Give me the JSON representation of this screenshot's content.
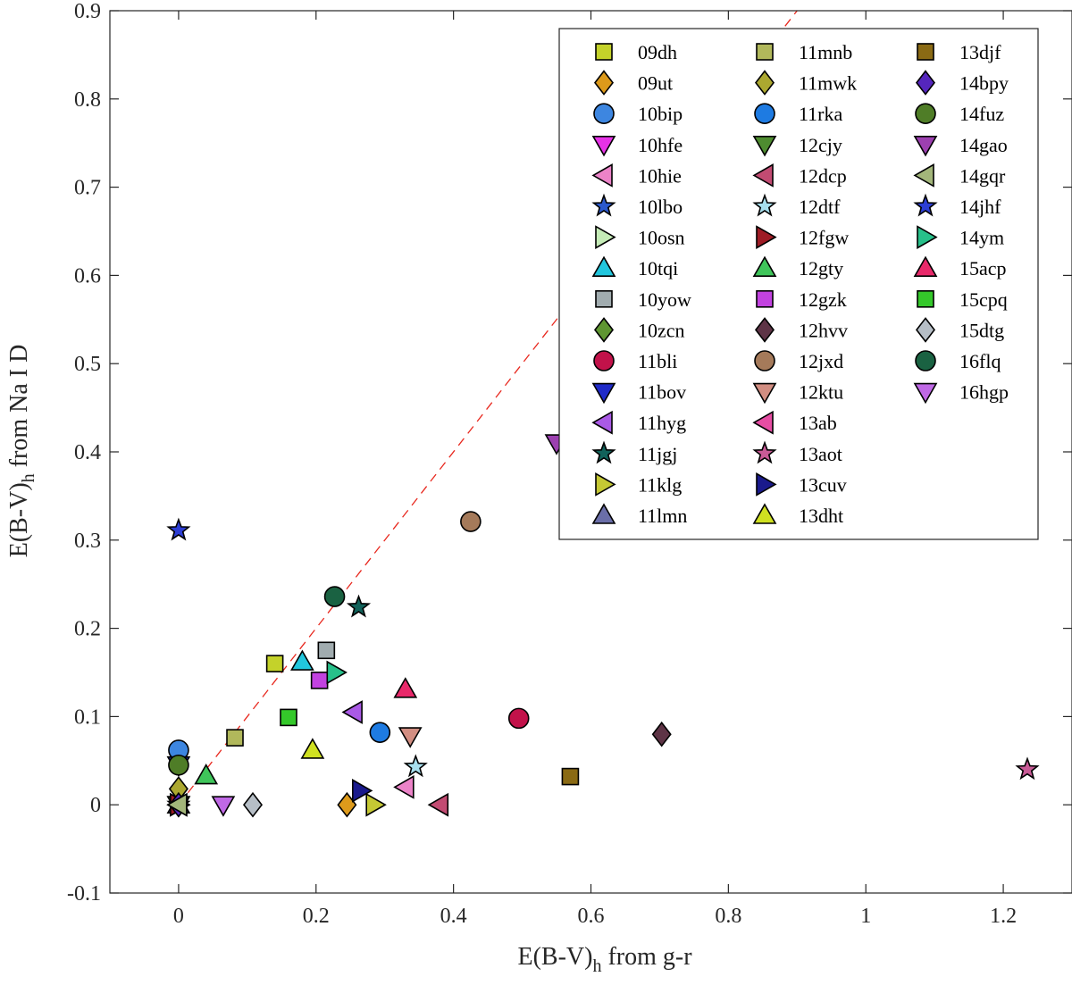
{
  "chart_data": {
    "type": "scatter",
    "title": "",
    "xlabel": "E(B-V)",
    "xlabel_sub": "h",
    "xlabel_suffix": " from g-r",
    "ylabel": "E(B-V)",
    "ylabel_sub": "h",
    "ylabel_suffix": " from Na I D",
    "xlim": [
      -0.1,
      1.3
    ],
    "ylim": [
      -0.1,
      0.9
    ],
    "xticks": [
      0,
      0.2,
      0.4,
      0.6,
      0.8,
      1,
      1.2
    ],
    "xtick_labels": [
      "0",
      "0.2",
      "0.4",
      "0.6",
      "0.8",
      "1",
      "1.2"
    ],
    "yticks": [
      -0.1,
      0,
      0.1,
      0.2,
      0.3,
      0.4,
      0.5,
      0.6,
      0.7,
      0.8,
      0.9
    ],
    "ytick_labels": [
      "-0.1",
      "0",
      "0.1",
      "0.2",
      "0.3",
      "0.4",
      "0.5",
      "0.6",
      "0.7",
      "0.8",
      "0.9"
    ],
    "reference_line": {
      "slope": 1,
      "intercept": 0,
      "color": "#e8281e",
      "style": "dashed"
    },
    "legend_position": "top-right",
    "series": [
      {
        "name": "09dh",
        "marker": "square",
        "color": "#c4d22a",
        "points": [
          [
            0.14,
            0.16
          ]
        ]
      },
      {
        "name": "09ut",
        "marker": "diamond",
        "color": "#dd9a1b",
        "points": [
          [
            0.245,
            0.0
          ]
        ]
      },
      {
        "name": "10bip",
        "marker": "circle",
        "color": "#3d86e0",
        "points": [
          [
            0.0,
            0.062
          ]
        ]
      },
      {
        "name": "10hfe",
        "marker": "triangle-down",
        "color": "#e632e6",
        "points": [
          [
            0.0,
            0.0
          ]
        ]
      },
      {
        "name": "10hie",
        "marker": "triangle-left",
        "color": "#ec83c8",
        "points": [
          [
            0.33,
            0.02
          ]
        ]
      },
      {
        "name": "10lbo",
        "marker": "star",
        "color": "#2b59cc",
        "points": [
          [
            0.0,
            0.0
          ]
        ]
      },
      {
        "name": "10osn",
        "marker": "triangle-right",
        "color": "#c5ecb7",
        "points": [
          [
            0.0,
            0.0
          ]
        ]
      },
      {
        "name": "10tqi",
        "marker": "triangle-up",
        "color": "#22c6dd",
        "points": [
          [
            0.18,
            0.162
          ]
        ]
      },
      {
        "name": "10yow",
        "marker": "square",
        "color": "#a1acaf",
        "points": [
          [
            0.215,
            0.175
          ]
        ]
      },
      {
        "name": "10zcn",
        "marker": "diamond",
        "color": "#5f9632",
        "points": [
          [
            0.0,
            0.0
          ]
        ]
      },
      {
        "name": "11bli",
        "marker": "circle",
        "color": "#c2124a",
        "points": [
          [
            0.495,
            0.098
          ]
        ]
      },
      {
        "name": "11bov",
        "marker": "triangle-down",
        "color": "#1f2ac8",
        "points": [
          [
            0.0,
            0.045
          ]
        ]
      },
      {
        "name": "11hyg",
        "marker": "triangle-left",
        "color": "#aa5ae6",
        "points": [
          [
            0.255,
            0.105
          ]
        ]
      },
      {
        "name": "11jgj",
        "marker": "star",
        "color": "#11625a",
        "points": [
          [
            0.262,
            0.224
          ]
        ]
      },
      {
        "name": "11klg",
        "marker": "triangle-right",
        "color": "#c5c834",
        "points": [
          [
            0.285,
            0.0
          ]
        ]
      },
      {
        "name": "11lmn",
        "marker": "triangle-up",
        "color": "#6a6ea8",
        "points": [
          [
            0.0,
            0.0
          ]
        ]
      },
      {
        "name": "11mnb",
        "marker": "square",
        "color": "#b1b85b",
        "points": [
          [
            0.082,
            0.076
          ]
        ]
      },
      {
        "name": "11mwk",
        "marker": "diamond",
        "color": "#aca830",
        "points": [
          [
            0.0,
            0.018
          ]
        ]
      },
      {
        "name": "11rka",
        "marker": "circle",
        "color": "#1e7be2",
        "points": [
          [
            0.293,
            0.082
          ]
        ]
      },
      {
        "name": "12cjy",
        "marker": "triangle-down",
        "color": "#4e8c30",
        "points": [
          [
            0.0,
            0.0
          ]
        ]
      },
      {
        "name": "12dcp",
        "marker": "triangle-left",
        "color": "#c24b72",
        "points": [
          [
            0.38,
            0.0
          ]
        ]
      },
      {
        "name": "12dtf",
        "marker": "star",
        "color": "#a7dfee",
        "points": [
          [
            0.345,
            0.043
          ]
        ]
      },
      {
        "name": "12fgw",
        "marker": "triangle-right",
        "color": "#9e1c25",
        "points": [
          [
            0.0,
            0.0
          ]
        ]
      },
      {
        "name": "12gty",
        "marker": "triangle-up",
        "color": "#3fc55a",
        "points": [
          [
            0.04,
            0.033
          ]
        ]
      },
      {
        "name": "12gzk",
        "marker": "square",
        "color": "#c242e0",
        "points": [
          [
            0.205,
            0.141
          ]
        ]
      },
      {
        "name": "12hvv",
        "marker": "diamond",
        "color": "#5e3446",
        "points": [
          [
            0.703,
            0.08
          ]
        ]
      },
      {
        "name": "12jxd",
        "marker": "circle",
        "color": "#a57a5a",
        "points": [
          [
            0.425,
            0.321
          ]
        ]
      },
      {
        "name": "12ktu",
        "marker": "triangle-down",
        "color": "#d28e82",
        "points": [
          [
            0.337,
            0.078
          ]
        ]
      },
      {
        "name": "13ab",
        "marker": "triangle-left",
        "color": "#e64da3",
        "points": [
          [
            0.0,
            0.0
          ]
        ]
      },
      {
        "name": "13aot",
        "marker": "star",
        "color": "#c85a96",
        "points": [
          [
            1.235,
            0.04
          ]
        ]
      },
      {
        "name": "13cuv",
        "marker": "triangle-right",
        "color": "#1a1a8c",
        "points": [
          [
            0.265,
            0.016
          ]
        ]
      },
      {
        "name": "13dht",
        "marker": "triangle-up",
        "color": "#cfe021",
        "points": [
          [
            0.195,
            0.062
          ]
        ]
      },
      {
        "name": "13djf",
        "marker": "square",
        "color": "#8a6a14",
        "points": [
          [
            0.57,
            0.032
          ]
        ]
      },
      {
        "name": "14bpy",
        "marker": "diamond",
        "color": "#5526bd",
        "points": [
          [
            0.0,
            0.0
          ]
        ]
      },
      {
        "name": "14fuz",
        "marker": "circle",
        "color": "#4f7d27",
        "points": [
          [
            0.0,
            0.045
          ]
        ]
      },
      {
        "name": "14gao",
        "marker": "triangle-down",
        "color": "#9c40b0",
        "points": [
          [
            0.55,
            0.41
          ]
        ]
      },
      {
        "name": "14gqr",
        "marker": "triangle-left",
        "color": "#a3b67a",
        "points": [
          [
            0.0,
            0.0
          ]
        ]
      },
      {
        "name": "14jhf",
        "marker": "star",
        "color": "#2d3ed4",
        "points": [
          [
            0.0,
            0.311
          ]
        ]
      },
      {
        "name": "14ym",
        "marker": "triangle-right",
        "color": "#27c08a",
        "points": [
          [
            0.228,
            0.15
          ]
        ]
      },
      {
        "name": "15acp",
        "marker": "triangle-up",
        "color": "#e8296a",
        "points": [
          [
            0.33,
            0.131
          ]
        ]
      },
      {
        "name": "15cpq",
        "marker": "square",
        "color": "#34c82a",
        "points": [
          [
            0.16,
            0.099
          ]
        ]
      },
      {
        "name": "15dtg",
        "marker": "diamond",
        "color": "#b6bec6",
        "points": [
          [
            0.108,
            0.0
          ]
        ]
      },
      {
        "name": "16flq",
        "marker": "circle",
        "color": "#1a6242",
        "points": [
          [
            0.227,
            0.236
          ]
        ]
      },
      {
        "name": "16hgp",
        "marker": "triangle-down",
        "color": "#c069e6",
        "points": [
          [
            0.065,
            0.0
          ]
        ]
      }
    ]
  }
}
